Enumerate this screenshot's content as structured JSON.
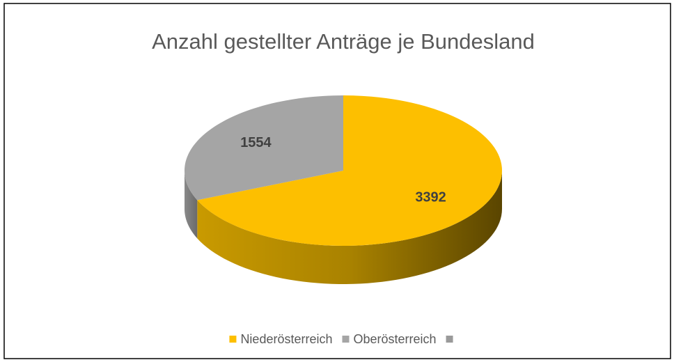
{
  "chart_data": {
    "type": "pie",
    "title": "Anzahl gestellter Anträge je Bundesland",
    "categories": [
      "Niederösterreich",
      "Oberösterreich",
      null
    ],
    "values": [
      3392,
      1554,
      null
    ],
    "colors": [
      "#fdbf00",
      "#a5a5a5",
      "#9a9a9a"
    ],
    "legend": "bottom"
  }
}
